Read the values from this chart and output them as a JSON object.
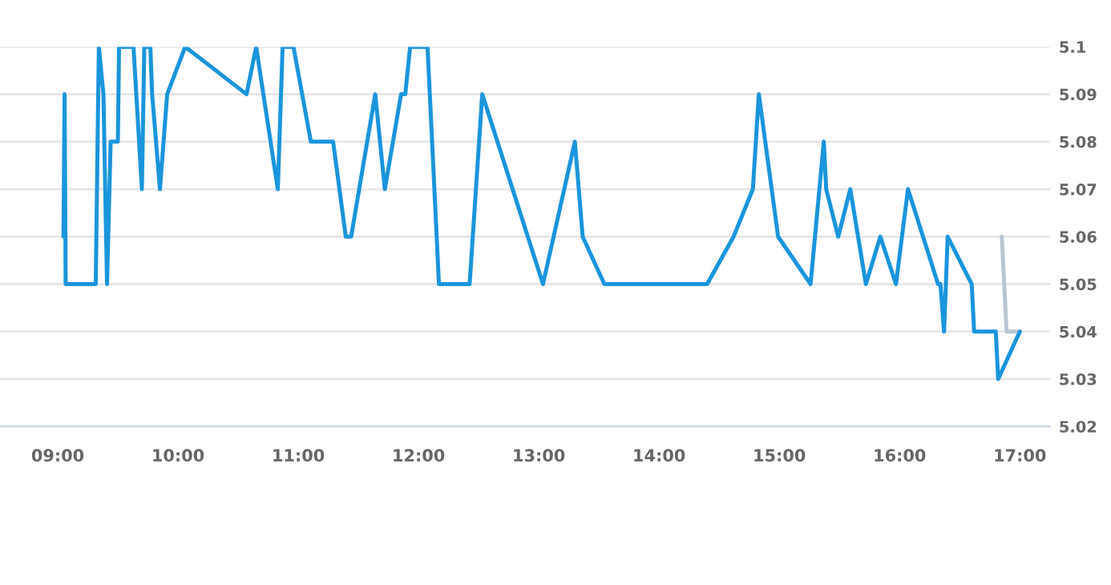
{
  "chart_data": {
    "type": "line",
    "series": [
      {
        "color": "#1a95dc",
        "x": [
          9.048,
          9.057,
          9.066,
          9.316,
          9.342,
          9.38,
          9.41,
          9.44,
          9.5,
          9.51,
          9.63,
          9.7,
          9.72,
          9.77,
          9.785,
          9.85,
          9.91,
          10.06,
          10.57,
          10.65,
          10.83,
          10.87,
          10.96,
          11.105,
          11.29,
          11.395,
          11.44,
          11.64,
          11.72,
          11.855,
          11.89,
          11.93,
          12.075,
          12.17,
          12.425,
          12.53,
          13.035,
          13.3,
          13.365,
          13.545,
          14.4,
          14.62,
          14.78,
          14.83,
          14.99,
          15.26,
          15.37,
          15.39,
          15.49,
          15.59,
          15.72,
          15.84,
          15.97,
          16.07,
          16.32,
          16.34,
          16.37,
          16.4,
          16.6,
          16.62,
          16.8,
          16.82,
          17.0
        ],
        "values": [
          5.06,
          5.09,
          5.05,
          5.05,
          5.1,
          5.09,
          5.05,
          5.08,
          5.08,
          5.1,
          5.1,
          5.07,
          5.1,
          5.1,
          5.09,
          5.07,
          5.09,
          5.1,
          5.09,
          5.1,
          5.07,
          5.1,
          5.1,
          5.08,
          5.08,
          5.06,
          5.06,
          5.09,
          5.07,
          5.09,
          5.09,
          5.1,
          5.1,
          5.05,
          5.05,
          5.09,
          5.05,
          5.08,
          5.06,
          5.05,
          5.05,
          5.06,
          5.07,
          5.09,
          5.06,
          5.05,
          5.08,
          5.07,
          5.06,
          5.07,
          5.05,
          5.06,
          5.05,
          5.07,
          5.05,
          5.05,
          5.04,
          5.06,
          5.05,
          5.04,
          5.04,
          5.03,
          5.04
        ]
      },
      {
        "color": "#b8c6d2",
        "x": [
          16.85,
          16.89,
          17.0
        ],
        "values": [
          5.06,
          5.04,
          5.04
        ]
      }
    ],
    "xlim": [
      8.52,
      17.25
    ],
    "xticks": [
      {
        "value": 9,
        "label": "09:00"
      },
      {
        "value": 10,
        "label": "10:00"
      },
      {
        "value": 11,
        "label": "11:00"
      },
      {
        "value": 12,
        "label": "12:00"
      },
      {
        "value": 13,
        "label": "13:00"
      },
      {
        "value": 14,
        "label": "14:00"
      },
      {
        "value": 15,
        "label": "15:00"
      },
      {
        "value": 16,
        "label": "16:00"
      },
      {
        "value": 17,
        "label": "17:00"
      }
    ],
    "ylim": [
      5.02,
      5.1
    ],
    "yticks": [
      5.02,
      5.03,
      5.04,
      5.05,
      5.06,
      5.07,
      5.08,
      5.09,
      5.1
    ],
    "grid": "y",
    "legend": false,
    "marker": "none",
    "line_style": "solid"
  }
}
